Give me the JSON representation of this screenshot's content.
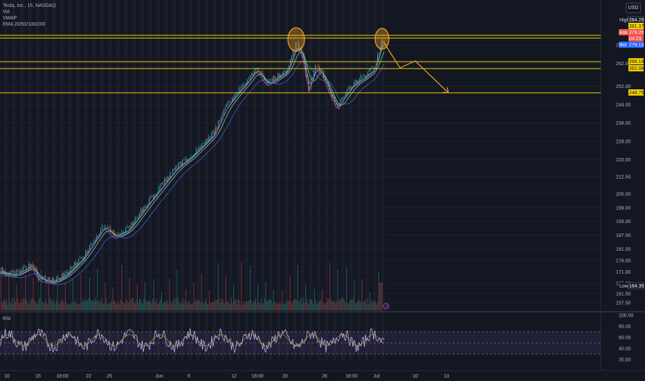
{
  "legend": {
    "symbol": "Tesla, Inc., 15, NASDAQ",
    "vol": "Vol",
    "vwap": "VWAP",
    "ema": "EMA 20/50/100/200"
  },
  "currency": "USD",
  "rsi_label": "RSI",
  "colors": {
    "bg": "#131722",
    "grid": "#1e222d",
    "level": "#f5d300",
    "arrow": "#f5a623",
    "circle": "#f5a623",
    "up": "#26a69a",
    "down": "#ef5350",
    "rsi": "#c4b4f2"
  },
  "price_axis": {
    "ticks": [
      "270.00",
      "262.00",
      "252.00",
      "244.00",
      "236.00",
      "228.00",
      "220.00",
      "212.50",
      "205.00",
      "199.00",
      "193.00",
      "187.00",
      "181.00",
      "176.00",
      "171.00",
      "166.00",
      "161.50",
      "157.50"
    ]
  },
  "price_tags": [
    {
      "label": "High",
      "value": "284.25",
      "kind": "high"
    },
    {
      "value": "281.37",
      "kind": "level"
    },
    {
      "label": "Ask",
      "value": "279.20",
      "kind": "ask"
    },
    {
      "value": "04:23",
      "kind": "timer"
    },
    {
      "label": "Bid",
      "value": "279.13",
      "kind": "bid"
    },
    {
      "value": "266.18",
      "kind": "level"
    },
    {
      "value": "262.06",
      "kind": "level"
    },
    {
      "value": "248.75",
      "kind": "level"
    },
    {
      "label": "Low",
      "value": "164.35",
      "kind": "low"
    }
  ],
  "rsi_axis": {
    "ticks": [
      "100.00",
      "80.00",
      "60.00",
      "40.00",
      "20.00"
    ]
  },
  "time_axis": {
    "ticks": [
      "10",
      "15",
      "18:00",
      "22",
      "25",
      "Jun",
      "6",
      "12",
      "18:00",
      "20",
      "26",
      "18:00",
      "Jul",
      "10",
      "13"
    ]
  },
  "chart_data": {
    "type": "candlestick",
    "symbol": "TSLA",
    "timeframe": "15",
    "price_range": [
      157.5,
      290
    ],
    "horizontal_levels": [
      281.37,
      279.2,
      266.18,
      262.06,
      248.75
    ],
    "approx_close_path": [
      [
        "10",
        171
      ],
      [
        "15",
        169
      ],
      [
        "18:00",
        172
      ],
      [
        "22",
        183
      ],
      [
        "25",
        182
      ],
      [
        "Jun",
        205
      ],
      [
        "6",
        226
      ],
      [
        "12",
        257
      ],
      [
        "18:00",
        262
      ],
      [
        "20",
        281
      ],
      [
        "26",
        244
      ],
      [
        "18:00",
        256
      ],
      [
        "Jul",
        279
      ]
    ],
    "projection": [
      [
        279,
        "Jul"
      ],
      [
        265,
        ""
      ],
      [
        268,
        ""
      ],
      [
        248.75,
        ""
      ]
    ],
    "rsi_range": [
      20,
      100
    ],
    "rsi_bands": [
      70,
      30
    ]
  },
  "volume_badge": "4"
}
